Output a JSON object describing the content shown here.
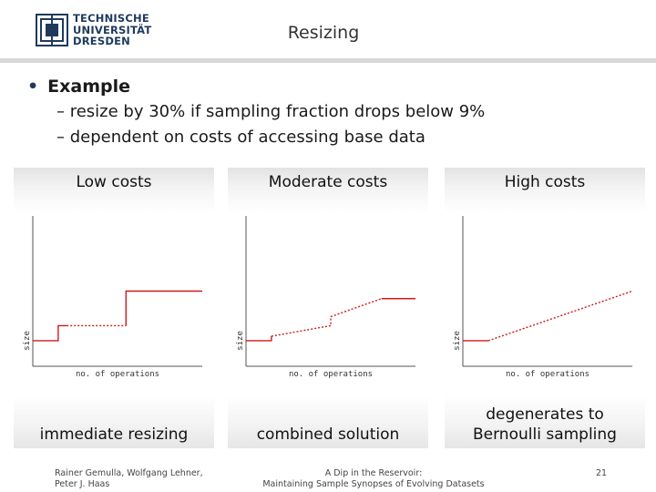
{
  "header": {
    "logo_lines": [
      "TECHNISCHE",
      "UNIVERSITÄT",
      "DRESDEN"
    ],
    "title": "Resizing"
  },
  "content": {
    "bullet": "Example",
    "subbullets": [
      "– resize by 30% if sampling fraction drops below 9%",
      "– dependent on costs of accessing base data"
    ]
  },
  "columns": [
    {
      "heading": "Low costs",
      "ylabel": "size",
      "xlabel": "no. of operations",
      "caption": "immediate resizing"
    },
    {
      "heading": "Moderate costs",
      "ylabel": "size",
      "xlabel": "no. of operations",
      "caption": "combined solution"
    },
    {
      "heading": "High costs",
      "ylabel": "size",
      "xlabel": "no. of operations",
      "caption": "degenerates to Bernoulli sampling"
    }
  ],
  "chart_data": [
    {
      "type": "line",
      "title": "Low costs",
      "xlabel": "no. of operations",
      "ylabel": "size",
      "series": [
        {
          "name": "solid",
          "style": "solid",
          "points": [
            [
              0,
              0.17
            ],
            [
              0.15,
              0.17
            ],
            [
              0.15,
              0.27
            ],
            [
              0.2,
              0.27
            ]
          ]
        },
        {
          "name": "dashed",
          "style": "dashed",
          "points": [
            [
              0.2,
              0.27
            ],
            [
              0.55,
              0.27
            ]
          ]
        },
        {
          "name": "solid-high",
          "style": "solid",
          "points": [
            [
              0.55,
              0.27
            ],
            [
              0.55,
              0.5
            ],
            [
              1,
              0.5
            ]
          ]
        }
      ]
    },
    {
      "type": "line",
      "title": "Moderate costs",
      "xlabel": "no. of operations",
      "ylabel": "size",
      "series": [
        {
          "name": "solid",
          "style": "solid",
          "points": [
            [
              0,
              0.17
            ],
            [
              0.15,
              0.17
            ],
            [
              0.15,
              0.2
            ]
          ]
        },
        {
          "name": "dashed-1",
          "style": "dashed",
          "points": [
            [
              0.15,
              0.2
            ],
            [
              0.5,
              0.27
            ],
            [
              0.5,
              0.33
            ]
          ]
        },
        {
          "name": "dashed-2",
          "style": "dashed",
          "points": [
            [
              0.5,
              0.33
            ],
            [
              0.8,
              0.45
            ]
          ]
        },
        {
          "name": "solid-high",
          "style": "solid",
          "points": [
            [
              0.8,
              0.45
            ],
            [
              1,
              0.45
            ]
          ]
        }
      ]
    },
    {
      "type": "line",
      "title": "High costs",
      "xlabel": "no. of operations",
      "ylabel": "size",
      "series": [
        {
          "name": "solid",
          "style": "solid",
          "points": [
            [
              0,
              0.17
            ],
            [
              0.15,
              0.17
            ]
          ]
        },
        {
          "name": "dashed",
          "style": "dashed",
          "points": [
            [
              0.15,
              0.17
            ],
            [
              1,
              0.5
            ]
          ]
        }
      ]
    }
  ],
  "footer": {
    "authors": [
      "Rainer Gemulla, Wolfgang Lehner,",
      "Peter J. Haas"
    ],
    "talk": [
      "A Dip in the Reservoir:",
      "Maintaining Sample Synopses of Evolving Datasets"
    ],
    "page": "21"
  },
  "colors": {
    "accent": "#cc1a1a",
    "brand": "#1f3a5c"
  }
}
